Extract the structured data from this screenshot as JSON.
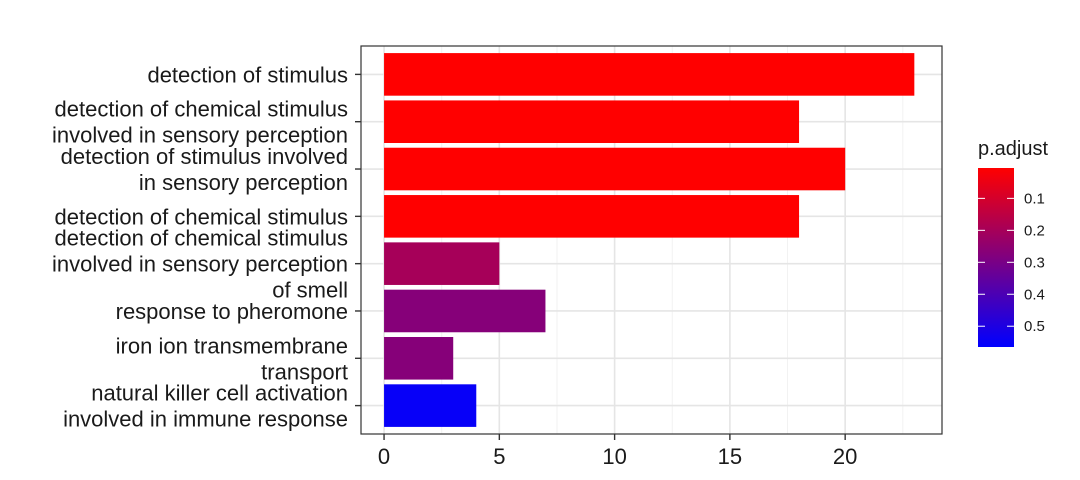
{
  "chart_data": {
    "type": "bar",
    "orientation": "horizontal",
    "categories": [
      [
        "detection of stimulus"
      ],
      [
        "detection of chemical stimulus",
        "involved in sensory perception"
      ],
      [
        "detection of stimulus involved",
        "in sensory perception"
      ],
      [
        "detection of chemical stimulus"
      ],
      [
        "detection of chemical stimulus",
        "involved in sensory perception",
        "of smell"
      ],
      [
        "response to pheromone"
      ],
      [
        "iron ion transmembrane",
        "transport"
      ],
      [
        "natural killer cell activation",
        "involved in immune response"
      ]
    ],
    "values": [
      23,
      18,
      20,
      18,
      5,
      7,
      3,
      4
    ],
    "p_adjust": [
      0.005,
      0.005,
      0.005,
      0.005,
      0.2,
      0.27,
      0.27,
      0.55
    ],
    "xlim": [
      -1,
      24.2
    ],
    "xticks": [
      0,
      5,
      10,
      15,
      20
    ],
    "grid": true,
    "legend": {
      "title": "p.adjust",
      "ticks": [
        0.1,
        0.2,
        0.3,
        0.4,
        0.5
      ],
      "range": [
        0.005,
        0.565
      ],
      "low_color": "#ff0000",
      "high_color": "#0000ff",
      "placement": "right"
    },
    "colors": {
      "panel_border": "#333333",
      "grid_major": "#e5e5e5",
      "grid_minor": "#f2f2f2"
    }
  }
}
